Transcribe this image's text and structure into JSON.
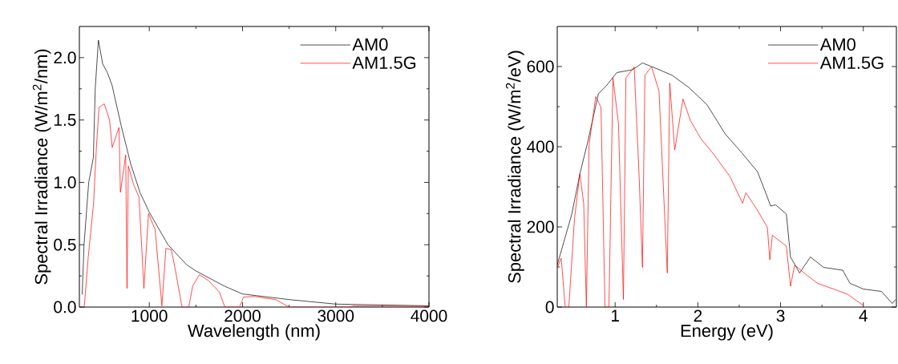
{
  "chart_data": [
    {
      "type": "line",
      "xlabel": "Wavelength (nm)",
      "ylabel": "Spectral Irradiance (W/m$^{2}$/nm)",
      "xlim": [
        250,
        4000
      ],
      "ylim": [
        0,
        2.25
      ],
      "xticks": [
        1000,
        2000,
        3000,
        4000
      ],
      "yticks": [
        {
          "value": 0,
          "label": "0.0"
        },
        0.5,
        {
          "value": 1,
          "label": "1.0"
        },
        1.5,
        {
          "value": 2,
          "label": "2.0"
        }
      ],
      "legend": "top right",
      "line_style": "solid",
      "marker": "none",
      "series": [
        {
          "name": "AM0",
          "color": "#000000",
          "x": [
            280,
            300,
            350,
            400,
            420,
            454,
            500,
            550,
            600,
            700,
            800,
            900,
            1000,
            1200,
            1400,
            1500,
            1600,
            1800,
            2000,
            2500,
            3000,
            4000
          ],
          "values": [
            0.1,
            0.5,
            1.0,
            1.2,
            1.75,
            2.14,
            1.95,
            1.88,
            1.78,
            1.45,
            1.15,
            0.92,
            0.76,
            0.5,
            0.34,
            0.29,
            0.25,
            0.17,
            0.105,
            0.06,
            0.024,
            0.01
          ]
        },
        {
          "name": "AM1.5G",
          "color": "#ff0000",
          "x": [
            302,
            345,
            402,
            431,
            460,
            517,
            574,
            602,
            675,
            690,
            747,
            761,
            775,
            833,
            890,
            942,
            991,
            1063,
            1135,
            1178,
            1236,
            1279,
            1351,
            1423,
            1466,
            1538,
            1638,
            1753,
            1810,
            1968,
            2011,
            2126,
            2356,
            2500,
            3132,
            3190,
            4000
          ],
          "values": [
            0,
            0.4,
            0.83,
            1.26,
            1.6,
            1.63,
            1.5,
            1.28,
            1.44,
            0.92,
            1.22,
            0.15,
            1.13,
            0.98,
            0.88,
            0.15,
            0.75,
            0.62,
            0.01,
            0.47,
            0.46,
            0.3,
            0,
            0,
            0.17,
            0.26,
            0.21,
            0.12,
            0,
            0,
            0.08,
            0.085,
            0.06,
            0,
            0,
            0.01,
            0.005
          ]
        }
      ]
    },
    {
      "type": "line",
      "xlabel": "Energy (eV)",
      "ylabel": "Spectral Irradiance (W/m$^{2}$/eV)",
      "xlim": [
        0.3,
        4.4
      ],
      "ylim": [
        0,
        700
      ],
      "xticks": [
        1,
        2,
        3,
        4
      ],
      "yticks": [
        0,
        200,
        400,
        600
      ],
      "legend": "top right",
      "line_style": "solid",
      "marker": "none",
      "series": [
        {
          "name": "AM0",
          "color": "#000000",
          "x": [
            0.3,
            0.476,
            0.573,
            0.669,
            0.797,
            0.893,
            1.02,
            1.21,
            1.33,
            1.5,
            1.69,
            1.89,
            2.11,
            2.33,
            2.53,
            2.72,
            2.82,
            2.88,
            2.94,
            3.07,
            3.12,
            3.23,
            3.36,
            3.52,
            3.75,
            3.84,
            4.0,
            4.22,
            4.35,
            4.39
          ],
          "values": [
            105,
            232,
            332,
            412,
            532,
            552,
            585,
            592,
            609,
            595,
            578,
            548,
            505,
            432,
            385,
            338,
            285,
            252,
            255,
            232,
            125,
            85,
            125,
            99,
            92,
            59,
            45,
            39,
            9,
            19
          ]
        },
        {
          "name": "AM1.5G",
          "color": "#ff0000",
          "x": [
            0.3,
            0.348,
            0.396,
            0.44,
            0.508,
            0.573,
            0.62,
            0.652,
            0.685,
            0.765,
            0.829,
            0.877,
            0.925,
            0.973,
            1.04,
            1.1,
            1.13,
            1.23,
            1.29,
            1.33,
            1.36,
            1.44,
            1.53,
            1.63,
            1.66,
            1.72,
            1.82,
            1.91,
            2.04,
            2.2,
            2.39,
            2.54,
            2.58,
            2.71,
            2.84,
            2.87,
            2.9,
            3.07,
            3.12,
            3.17,
            3.32,
            3.45,
            3.68,
            3.81,
            4.0
          ],
          "values": [
            98,
            122,
            0,
            0,
            219,
            332,
            258,
            0,
            405,
            525,
            498,
            0,
            0,
            572,
            458,
            19,
            572,
            599,
            325,
            99,
            579,
            599,
            539,
            85,
            559,
            392,
            519,
            465,
            419,
            379,
            325,
            259,
            285,
            245,
            199,
            118,
            179,
            152,
            52,
            105,
            79,
            59,
            42,
            32,
            4
          ]
        }
      ]
    }
  ]
}
